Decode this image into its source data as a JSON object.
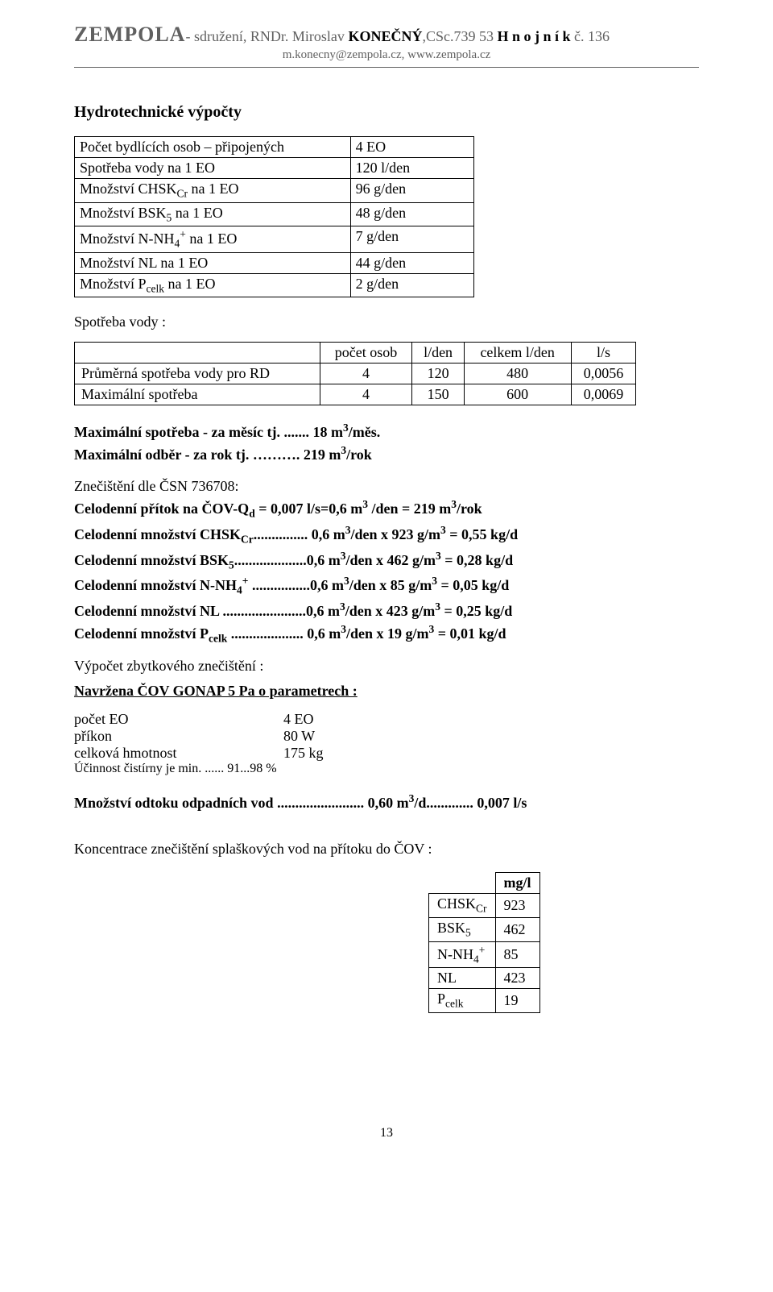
{
  "header": {
    "brand": "ZEMPOLA",
    "tail1": "- sdružení, RNDr. Miroslav ",
    "lastname": "KONEČNÝ",
    "tail2": ",CSc.739  53  ",
    "town": "H n o j n í k",
    "tail3": "  č. 136",
    "line2": "m.konecny@zempola.cz,  www.zempola.cz"
  },
  "title": "Hydrotechnické výpočty",
  "table1": {
    "rows": [
      {
        "label_html": "Počet bydlících osob – připojených",
        "value": "4 EO"
      },
      {
        "label_html": "Spotřeba vody  na 1 EO",
        "value": "120 l/den"
      },
      {
        "label_html": "Množství  CHSK<span class='sub'>Cr</span> na 1 EO",
        "value": "96 g/den"
      },
      {
        "label_html": "Množství  BSK<span class='sub'>5</span>    na 1 EO",
        "value": "48 g/den"
      },
      {
        "label_html": "Množství  N-NH<span class='sub'>4</span><span class='sup'>+</span> na 1 EO",
        "value": "7 g/den"
      },
      {
        "label_html": "Množství  NL       na 1 EO",
        "value": "44 g/den"
      },
      {
        "label_html": "Množství  P<span class='sub'>celk</span>    na 1 EO",
        "value": "2 g/den"
      }
    ]
  },
  "spotreba_label": "Spotřeba vody :",
  "table2": {
    "headers": [
      "",
      "počet osob",
      "l/den",
      "celkem l/den",
      "l/s"
    ],
    "rows": [
      [
        "Průměrná spotřeba vody pro RD",
        "4",
        "120",
        "480",
        "0,0056"
      ],
      [
        "Maximální spotřeba",
        "4",
        "150",
        "600",
        "0,0069"
      ]
    ]
  },
  "max_lines": {
    "l1_html": "Maximální spotřeba - za měsíc tj. ....... 18 m<span class='sup'>3</span>/měs.",
    "l2_html": "Maximální odběr -  za rok tj. ………. 219 m<span class='sup'>3</span>/rok"
  },
  "csn_label": "Znečištění dle ČSN 736708:",
  "celo_lines": [
    "Celodenní přítok na ČOV-Q<span class='sub'>d</span> = 0,007 l/s=0,6 m<span class='sup'>3</span> /den =  219 m<span class='sup'>3</span>/rok",
    "Celodenní množství   CHSK<span class='sub'>Cr</span>............... 0,6 m<span class='sup'>3</span>/den x 923 g/m<span class='sup'>3</span> =  0,55   kg/d",
    "Celodenní množství   BSK<span class='sub'>5</span>....................0,6 m<span class='sup'>3</span>/den x 462 g/m<span class='sup'>3</span> =  0,28   kg/d",
    "Celodenní množství   N-NH<span class='sub'>4</span><span class='sup'>+</span> ................0,6 m<span class='sup'>3</span>/den x  85 g/m<span class='sup'>3</span> =  0,05   kg/d",
    "Celodenní množství   NL .......................0,6 m<span class='sup'>3</span>/den x 423 g/m<span class='sup'>3</span> =  0,25   kg/d",
    "Celodenní množství   P<span class='sub'>celk</span>  .................... 0,6 m<span class='sup'>3</span>/den x  19 g/m<span class='sup'>3</span> =  0,01   kg/d"
  ],
  "vypocet_label": "Výpočet zbytkového znečištění :",
  "navrzena_label": "Navržena ČOV  GONAP 5 Pa  o parametrech :",
  "params": {
    "rows": [
      {
        "k": "počet EO",
        "v": "  4 EO"
      },
      {
        "k": "příkon",
        "v": " 80 W"
      },
      {
        "k": "celková hmotnost",
        "v": "175 kg"
      }
    ],
    "ucinnost": "Účinnost čistírny je  min. ......  91...98 %"
  },
  "odtok_html": "Množství  odtoku  odpadních vod ........................  0,60 m<span class='sup'>3</span>/d.............  0,007 l/s",
  "konc_label": "Koncentrace  znečištění splaškových vod na přítoku  do ČOV :",
  "table3": {
    "header": "mg/l",
    "rows": [
      {
        "label_html": "CHSK<span class='sub'>Cr</span>",
        "value": "923"
      },
      {
        "label_html": "BSK<span class='sub'>5</span>",
        "value": "462"
      },
      {
        "label_html": "N-NH<span class='sub'>4</span><span class='sup'>+</span>",
        "value": "85"
      },
      {
        "label_html": "NL",
        "value": "423"
      },
      {
        "label_html": "P<span class='sub'>celk</span>",
        "value": "19"
      }
    ]
  },
  "page_number": "13"
}
